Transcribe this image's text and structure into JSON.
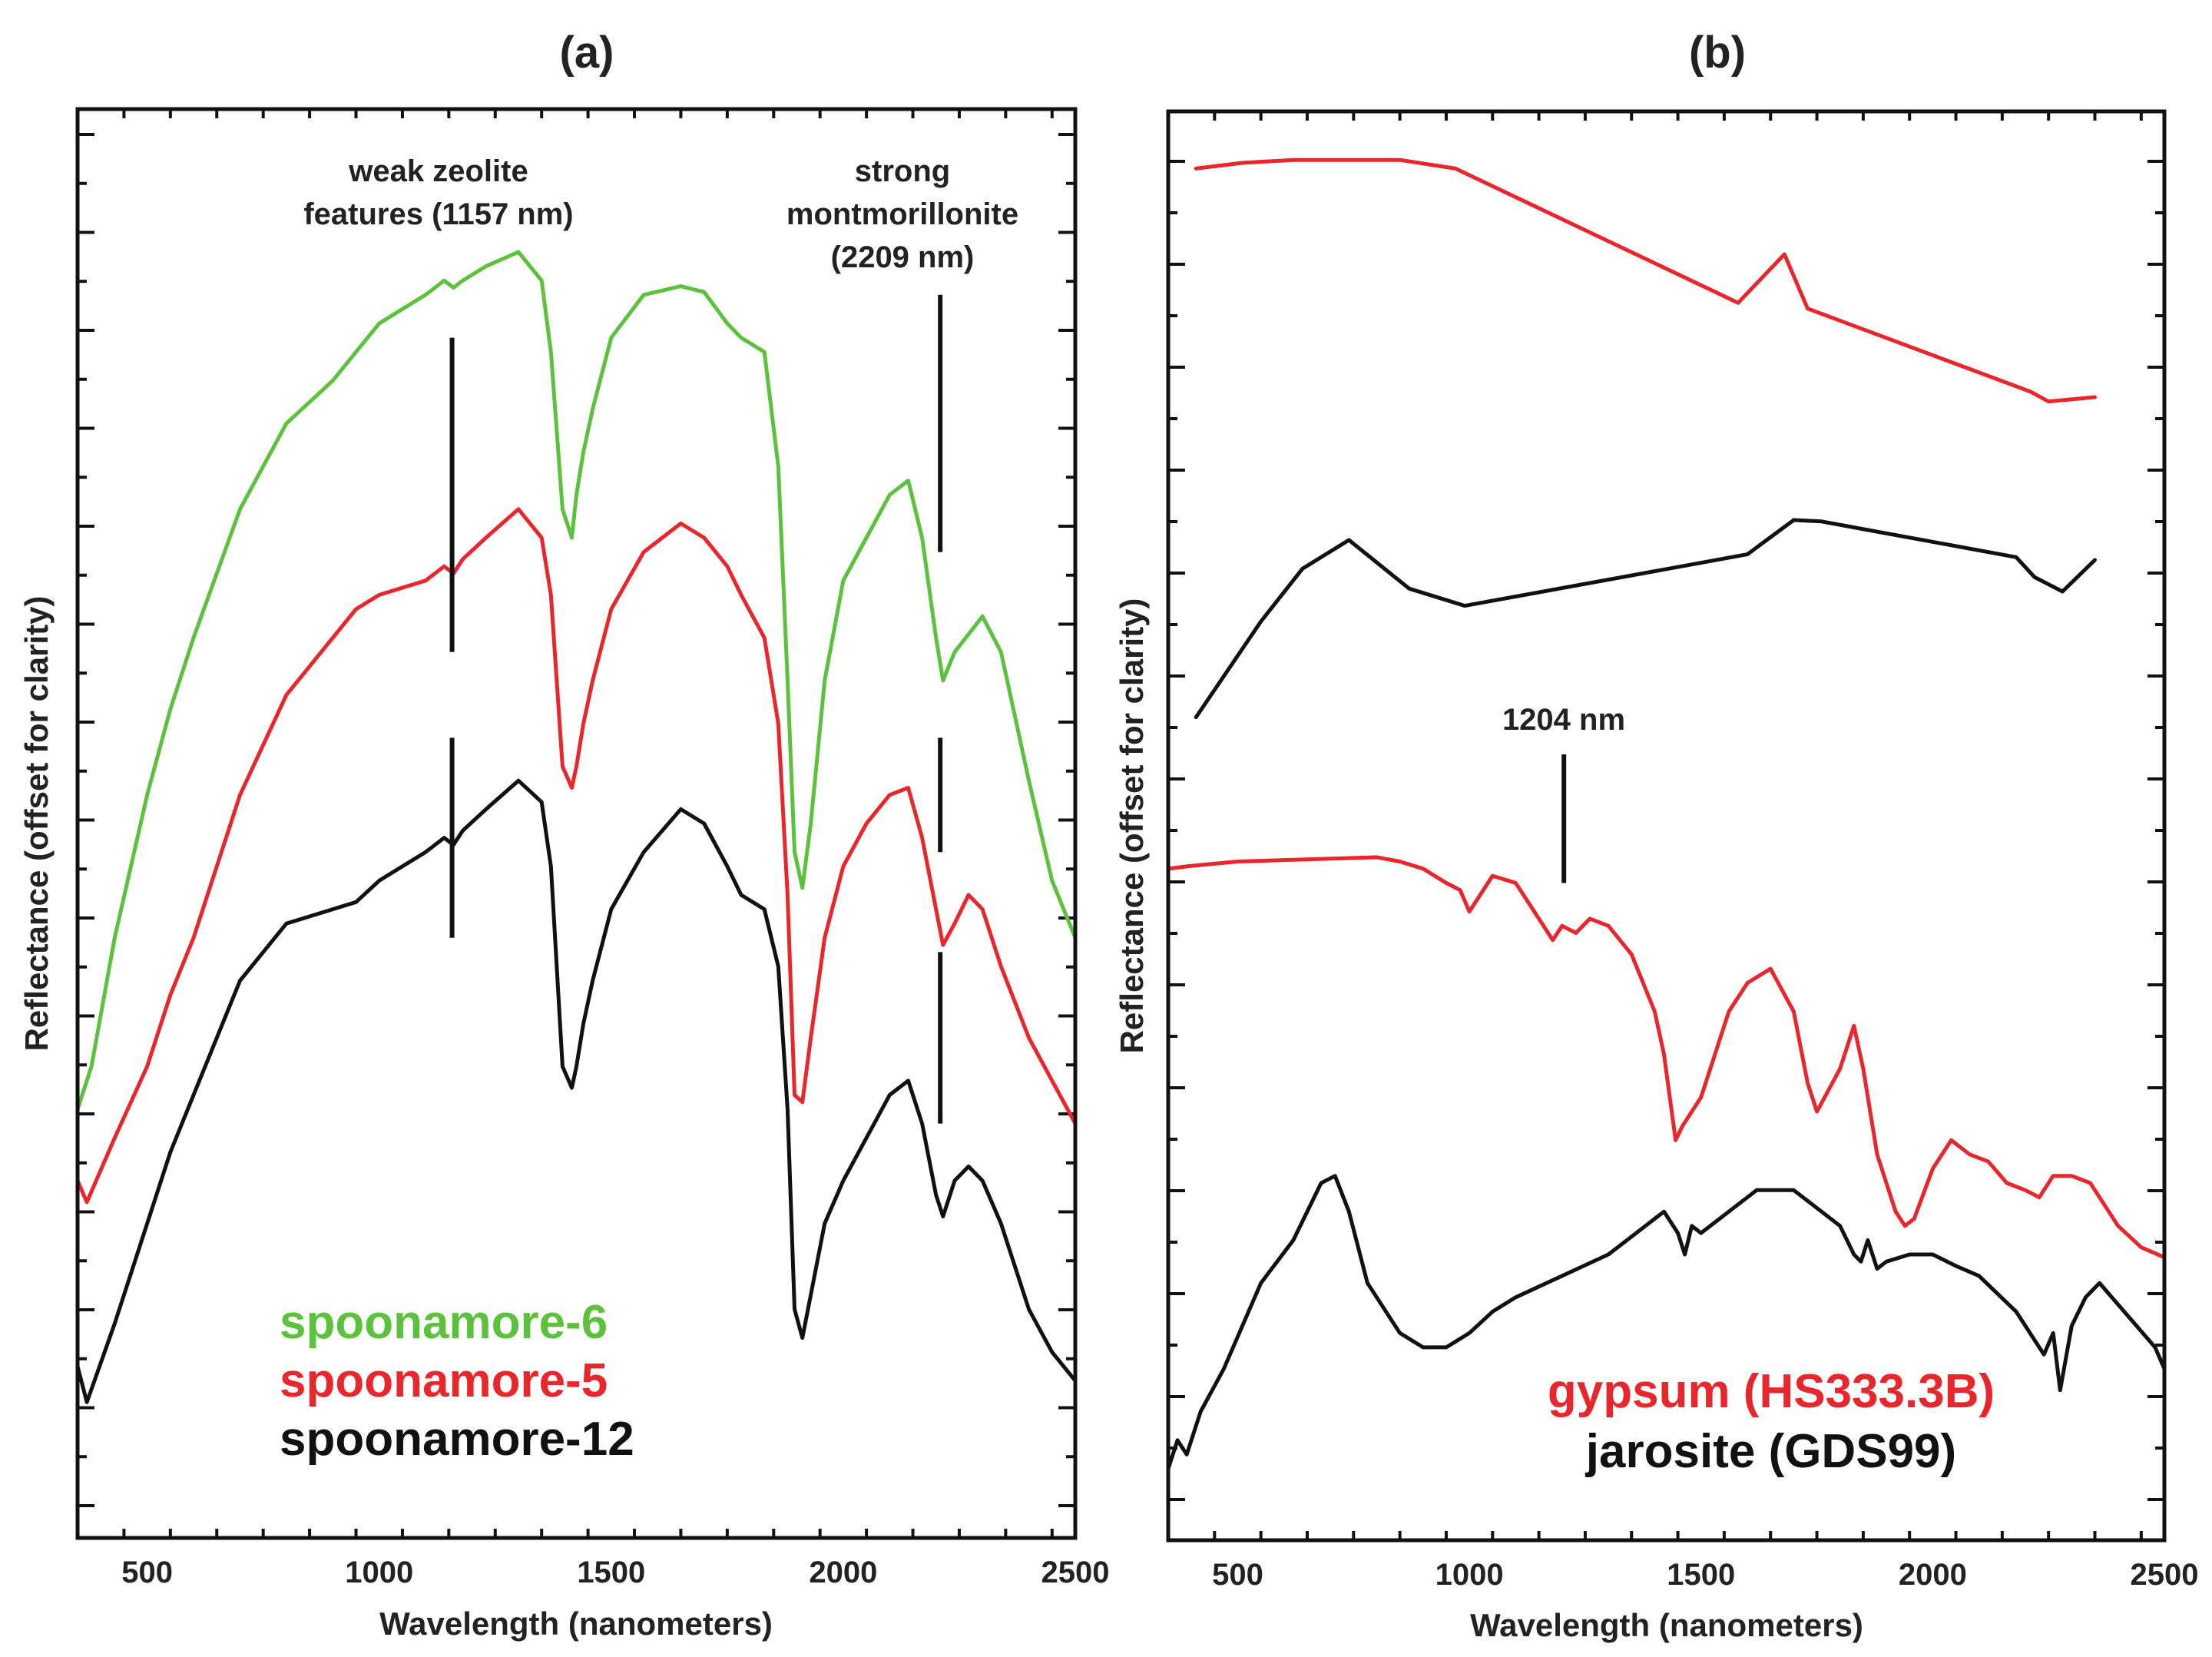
{
  "chart_data": [
    {
      "type": "line",
      "panel_label": "(a)",
      "title": "",
      "xlabel": "Wavelength (nanometers)",
      "ylabel": "Reflectance (offset for clarity)",
      "xlim": [
        350,
        2500
      ],
      "ylim": [
        0,
        1
      ],
      "x_ticks": [
        500,
        1000,
        1500,
        2000,
        2500
      ],
      "y_ticks_unlabeled": true,
      "grid": false,
      "legend_position": "bottom-left",
      "annotations": [
        {
          "text_lines": [
            "weak zeolite",
            "features (1157 nm)"
          ],
          "x": 1157,
          "marker_segments": [
            [
              0.62,
              0.84
            ],
            [
              0.42,
              0.56
            ]
          ]
        },
        {
          "text_lines": [
            "strong",
            "montmorillonite",
            "(2209 nm)"
          ],
          "x": 2209,
          "marker_segments": [
            [
              0.69,
              0.87
            ],
            [
              0.48,
              0.56
            ],
            [
              0.29,
              0.41
            ]
          ]
        }
      ],
      "series": [
        {
          "name": "spoonamore-6",
          "color": "#5cc23e",
          "x": [
            350,
            380,
            430,
            500,
            550,
            600,
            700,
            800,
            900,
            950,
            1000,
            1100,
            1140,
            1160,
            1180,
            1230,
            1300,
            1350,
            1370,
            1395,
            1415,
            1425,
            1440,
            1460,
            1500,
            1570,
            1650,
            1700,
            1750,
            1780,
            1830,
            1860,
            1880,
            1895,
            1912,
            1930,
            1960,
            2000,
            2050,
            2100,
            2140,
            2170,
            2200,
            2215,
            2240,
            2300,
            2340,
            2400,
            2450,
            2500
          ],
          "y": [
            0.3,
            0.33,
            0.42,
            0.52,
            0.58,
            0.63,
            0.72,
            0.78,
            0.81,
            0.83,
            0.85,
            0.87,
            0.88,
            0.875,
            0.88,
            0.89,
            0.9,
            0.88,
            0.83,
            0.72,
            0.7,
            0.73,
            0.76,
            0.79,
            0.84,
            0.87,
            0.876,
            0.872,
            0.85,
            0.84,
            0.83,
            0.75,
            0.6,
            0.48,
            0.455,
            0.5,
            0.6,
            0.67,
            0.7,
            0.73,
            0.74,
            0.7,
            0.63,
            0.6,
            0.62,
            0.645,
            0.62,
            0.53,
            0.46,
            0.42
          ]
        },
        {
          "name": "spoonamore-5",
          "color": "#e8262b",
          "x": [
            350,
            370,
            430,
            500,
            550,
            600,
            700,
            800,
            900,
            950,
            1000,
            1100,
            1140,
            1160,
            1180,
            1230,
            1300,
            1350,
            1370,
            1395,
            1415,
            1425,
            1440,
            1460,
            1500,
            1570,
            1650,
            1700,
            1750,
            1780,
            1830,
            1860,
            1880,
            1895,
            1912,
            1930,
            1960,
            2000,
            2050,
            2100,
            2140,
            2170,
            2200,
            2215,
            2240,
            2270,
            2300,
            2340,
            2400,
            2450,
            2500
          ],
          "y": [
            0.25,
            0.235,
            0.28,
            0.33,
            0.38,
            0.42,
            0.52,
            0.59,
            0.63,
            0.65,
            0.66,
            0.67,
            0.68,
            0.675,
            0.685,
            0.7,
            0.72,
            0.7,
            0.66,
            0.54,
            0.525,
            0.54,
            0.57,
            0.6,
            0.65,
            0.69,
            0.71,
            0.7,
            0.68,
            0.66,
            0.63,
            0.57,
            0.45,
            0.31,
            0.305,
            0.35,
            0.42,
            0.47,
            0.5,
            0.52,
            0.525,
            0.49,
            0.44,
            0.415,
            0.43,
            0.45,
            0.44,
            0.4,
            0.35,
            0.32,
            0.29
          ]
        },
        {
          "name": "spoonamore-12",
          "color": "#111111",
          "x": [
            350,
            370,
            430,
            500,
            550,
            600,
            700,
            800,
            900,
            950,
            1000,
            1100,
            1140,
            1160,
            1180,
            1230,
            1300,
            1350,
            1370,
            1395,
            1415,
            1425,
            1440,
            1460,
            1500,
            1570,
            1650,
            1700,
            1750,
            1780,
            1830,
            1860,
            1880,
            1895,
            1912,
            1930,
            1960,
            2000,
            2050,
            2100,
            2140,
            2170,
            2200,
            2215,
            2240,
            2270,
            2300,
            2340,
            2400,
            2450,
            2500
          ],
          "y": [
            0.12,
            0.095,
            0.15,
            0.22,
            0.27,
            0.31,
            0.39,
            0.43,
            0.44,
            0.445,
            0.46,
            0.48,
            0.49,
            0.485,
            0.495,
            0.51,
            0.53,
            0.515,
            0.47,
            0.33,
            0.315,
            0.33,
            0.36,
            0.39,
            0.44,
            0.48,
            0.51,
            0.5,
            0.47,
            0.45,
            0.44,
            0.4,
            0.3,
            0.16,
            0.14,
            0.17,
            0.22,
            0.25,
            0.28,
            0.31,
            0.32,
            0.29,
            0.24,
            0.225,
            0.25,
            0.26,
            0.25,
            0.22,
            0.16,
            0.13,
            0.11
          ]
        }
      ]
    },
    {
      "type": "line",
      "panel_label": "(b)",
      "title": "",
      "xlabel": "Wavelength (nanometers)",
      "ylabel": "Reflectance (offset for clarity)",
      "xlim": [
        350,
        2500
      ],
      "ylim": [
        0,
        1
      ],
      "x_ticks": [
        500,
        1000,
        1500,
        2000,
        2500
      ],
      "y_ticks_unlabeled": true,
      "grid": false,
      "legend_position": "bottom-center",
      "annotations": [
        {
          "text_lines": [
            "1204 nm"
          ],
          "x": 1204,
          "marker_segments": [
            [
              0.46,
              0.55
            ]
          ]
        }
      ],
      "series": [
        {
          "name": "gypsum (HS333.3B)",
          "color": "#e8262b",
          "legend": true,
          "x": [
            350,
            400,
            500,
            600,
            700,
            800,
            850,
            900,
            950,
            980,
            1000,
            1050,
            1100,
            1140,
            1180,
            1200,
            1230,
            1260,
            1300,
            1350,
            1400,
            1420,
            1445,
            1460,
            1480,
            1500,
            1520,
            1560,
            1600,
            1650,
            1700,
            1730,
            1750,
            1800,
            1830,
            1850,
            1880,
            1920,
            1940,
            1960,
            2000,
            2040,
            2080,
            2120,
            2160,
            2200,
            2230,
            2260,
            2300,
            2340,
            2400,
            2450,
            2500
          ],
          "y": [
            0.47,
            0.472,
            0.475,
            0.476,
            0.477,
            0.478,
            0.475,
            0.47,
            0.46,
            0.455,
            0.44,
            0.465,
            0.46,
            0.44,
            0.42,
            0.43,
            0.425,
            0.435,
            0.43,
            0.41,
            0.37,
            0.34,
            0.28,
            0.29,
            0.3,
            0.31,
            0.33,
            0.37,
            0.39,
            0.4,
            0.37,
            0.32,
            0.3,
            0.33,
            0.36,
            0.33,
            0.27,
            0.23,
            0.22,
            0.225,
            0.26,
            0.28,
            0.27,
            0.265,
            0.25,
            0.245,
            0.24,
            0.255,
            0.255,
            0.25,
            0.22,
            0.205,
            0.198
          ]
        },
        {
          "name": "jarosite (GDS99)",
          "color": "#111111",
          "legend": true,
          "x": [
            350,
            370,
            390,
            420,
            470,
            550,
            620,
            680,
            710,
            740,
            780,
            850,
            900,
            950,
            1000,
            1050,
            1100,
            1200,
            1300,
            1380,
            1420,
            1450,
            1465,
            1480,
            1500,
            1560,
            1620,
            1700,
            1760,
            1800,
            1830,
            1845,
            1860,
            1880,
            1900,
            1950,
            2000,
            2050,
            2100,
            2180,
            2220,
            2240,
            2260,
            2275,
            2300,
            2330,
            2360,
            2400,
            2440,
            2480,
            2500
          ],
          "y": [
            0.05,
            0.07,
            0.06,
            0.09,
            0.12,
            0.18,
            0.21,
            0.25,
            0.255,
            0.23,
            0.18,
            0.145,
            0.135,
            0.135,
            0.145,
            0.16,
            0.17,
            0.185,
            0.2,
            0.22,
            0.23,
            0.215,
            0.2,
            0.22,
            0.215,
            0.23,
            0.245,
            0.245,
            0.23,
            0.22,
            0.2,
            0.195,
            0.21,
            0.19,
            0.195,
            0.2,
            0.2,
            0.192,
            0.185,
            0.16,
            0.14,
            0.13,
            0.145,
            0.105,
            0.15,
            0.17,
            0.18,
            0.165,
            0.15,
            0.135,
            0.12
          ]
        },
        {
          "name": "gypsum (library spectrum)",
          "color": "#e8262b",
          "legend": false,
          "x": [
            410,
            510,
            620,
            730,
            850,
            970,
            1580,
            1680,
            1730,
            2210,
            2250,
            2350
          ],
          "y": [
            0.96,
            0.964,
            0.966,
            0.966,
            0.966,
            0.96,
            0.866,
            0.9,
            0.862,
            0.804,
            0.797,
            0.8
          ]
        },
        {
          "name": "jarosite (library spectrum)",
          "color": "#111111",
          "legend": false,
          "x": [
            410,
            550,
            640,
            740,
            870,
            990,
            1600,
            1700,
            1760,
            2180,
            2220,
            2280,
            2350
          ],
          "y": [
            0.576,
            0.643,
            0.68,
            0.7,
            0.666,
            0.654,
            0.69,
            0.714,
            0.713,
            0.688,
            0.674,
            0.664,
            0.686
          ]
        }
      ]
    }
  ]
}
